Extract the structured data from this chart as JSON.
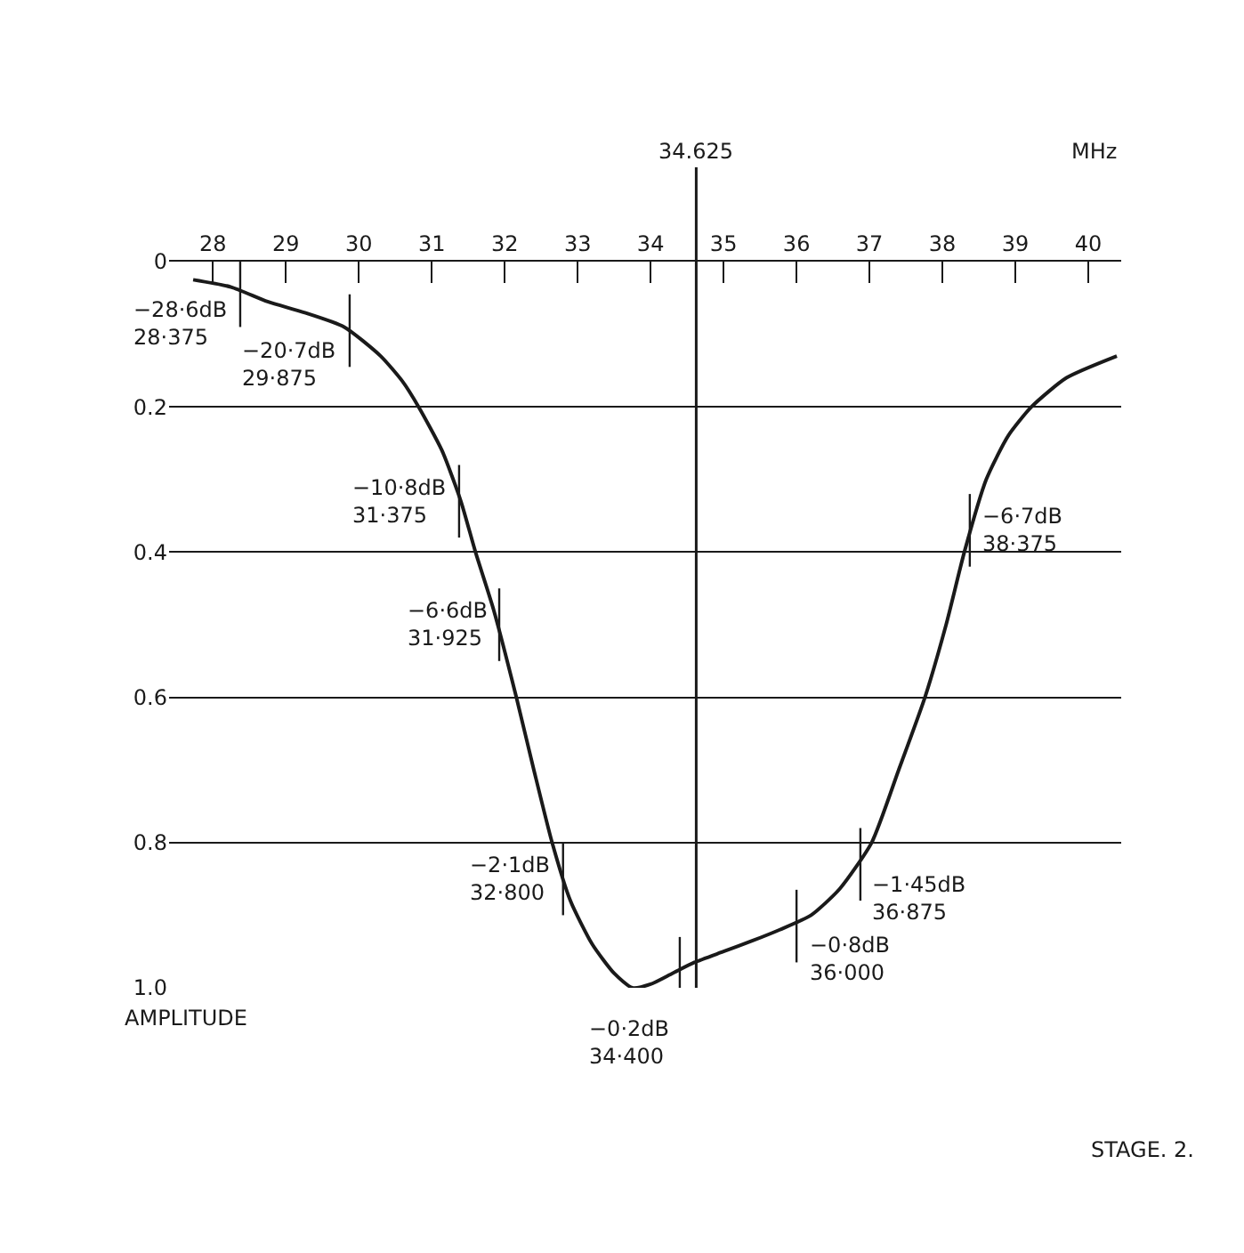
{
  "chart_data": {
    "type": "line",
    "xlabel": "MHz",
    "ylabel": "AMPLITUDE",
    "xlim": [
      27.4,
      40.45
    ],
    "xticks": [
      28,
      29,
      30,
      31,
      32,
      33,
      34,
      35,
      36,
      37,
      38,
      39,
      40
    ],
    "ylim": [
      1.0,
      0
    ],
    "yticks": [
      0,
      0.2,
      0.4,
      0.6,
      0.8,
      {
        "value": 1.0,
        "label": "1.0"
      }
    ],
    "grid": "y",
    "marker": "none",
    "line_style": "solid",
    "series": [
      {
        "color": "#1a1a1a",
        "x": [
          27.73,
          28.25,
          28.75,
          29.25,
          29.8,
          30.3,
          30.6,
          30.82,
          31.14,
          31.4,
          31.6,
          31.85,
          32.16,
          32.4,
          32.65,
          32.9,
          33.2,
          33.5,
          33.75,
          34.0,
          34.3,
          34.6,
          35.0,
          35.4,
          35.77,
          36.2,
          36.59,
          37.03,
          37.4,
          37.76,
          38.05,
          38.3,
          38.6,
          38.9,
          39.22,
          39.7,
          40.39
        ],
        "values": [
          0.025,
          0.035,
          0.055,
          0.07,
          0.09,
          0.13,
          0.165,
          0.2,
          0.26,
          0.33,
          0.4,
          0.48,
          0.6,
          0.7,
          0.8,
          0.88,
          0.94,
          0.98,
          1.0,
          0.995,
          0.98,
          0.965,
          0.95,
          0.935,
          0.92,
          0.9,
          0.864,
          0.8,
          0.7,
          0.6,
          0.5,
          0.4,
          0.3,
          0.24,
          0.2,
          0.16,
          0.13
        ]
      }
    ],
    "ref_lines": [
      {
        "axis": "x",
        "value": 34.625,
        "label": "34.625",
        "color": "#1a1a1a"
      }
    ],
    "annotations": [
      {
        "text": "−28·6dB\n28·375",
        "x": 28.375,
        "y": 0.04
      },
      {
        "text": "−20·7dB\n29·875",
        "x": 29.875,
        "y": 0.095
      },
      {
        "text": "−10·8dB\n31·375",
        "x": 31.375,
        "y": 0.33
      },
      {
        "text": "−6·6dB\n31·925",
        "x": 31.925,
        "y": 0.5
      },
      {
        "text": "−2·1dB\n32·800",
        "x": 32.8,
        "y": 0.85
      },
      {
        "text": "−0·2dB\n34·400",
        "x": 34.4,
        "y": 0.98
      },
      {
        "text": "−0·8dB\n36·000",
        "x": 36.0,
        "y": 0.915
      },
      {
        "text": "−1·45dB\n36·875",
        "x": 36.875,
        "y": 0.83
      },
      {
        "text": "−6·7dB\n38·375",
        "x": 38.375,
        "y": 0.37
      },
      "STAGE. 2."
    ]
  }
}
